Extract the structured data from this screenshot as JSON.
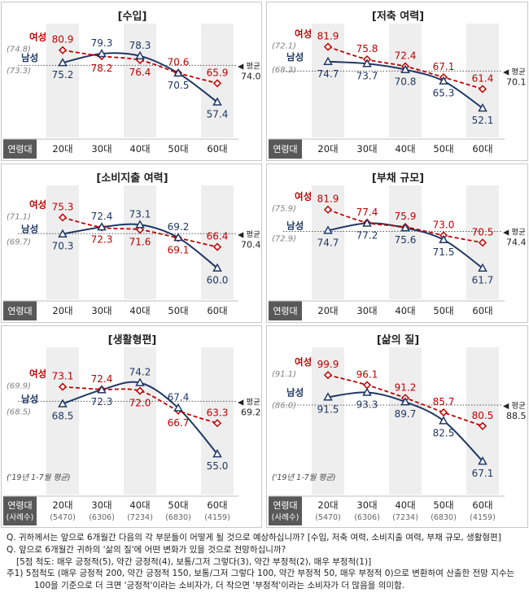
{
  "labels": {
    "female": "여성",
    "male": "남성",
    "average": "◀ 평균",
    "row_header": "연령대",
    "row_header_sub": "(사례수)",
    "period_note": "('19년 1-7월 평균)"
  },
  "colors": {
    "female": "#c00000",
    "male": "#1f3864",
    "col_band": "#eeeeee",
    "header_bg": "#595959"
  },
  "chart_data": [
    {
      "type": "line",
      "title": "[수입]",
      "categories": [
        "20대",
        "30대",
        "40대",
        "50대",
        "60대"
      ],
      "series": [
        {
          "name": "여성",
          "values": [
            80.9,
            78.2,
            76.4,
            70.6,
            65.9
          ],
          "prior_avg": "(74.8)"
        },
        {
          "name": "남성",
          "values": [
            75.2,
            79.3,
            78.3,
            70.5,
            57.4
          ],
          "prior_avg": "(73.3)"
        }
      ],
      "average": 74.0,
      "average_label": "74.0",
      "ylim": [
        48,
        90
      ]
    },
    {
      "type": "line",
      "title": "[저축 여력]",
      "categories": [
        "20대",
        "30대",
        "40대",
        "50대",
        "60대"
      ],
      "series": [
        {
          "name": "여성",
          "values": [
            81.9,
            75.8,
            72.4,
            67.1,
            61.4
          ],
          "prior_avg": "(72.1)"
        },
        {
          "name": "남성",
          "values": [
            74.7,
            73.7,
            70.8,
            65.3,
            52.1
          ],
          "prior_avg": "(68.3)"
        }
      ],
      "average": 70.1,
      "average_label": "70.1",
      "ylim": [
        45,
        90
      ]
    },
    {
      "type": "line",
      "title": "[소비지출 여력]",
      "categories": [
        "20대",
        "30대",
        "40대",
        "50대",
        "60대"
      ],
      "series": [
        {
          "name": "여성",
          "values": [
            75.3,
            72.3,
            71.6,
            69.1,
            66.4
          ],
          "prior_avg": "(71.1)"
        },
        {
          "name": "남성",
          "values": [
            70.3,
            72.4,
            73.1,
            69.2,
            60.0
          ],
          "prior_avg": "(69.7)"
        }
      ],
      "average": 70.4,
      "average_label": "70.4",
      "ylim": [
        55,
        83
      ]
    },
    {
      "type": "line",
      "title": "[부채 규모]",
      "categories": [
        "20대",
        "30대",
        "40대",
        "50대",
        "60대"
      ],
      "series": [
        {
          "name": "여성",
          "values": [
            81.9,
            77.4,
            75.9,
            73.0,
            70.5
          ],
          "prior_avg": "(75.9)"
        },
        {
          "name": "남성",
          "values": [
            74.7,
            77.2,
            75.6,
            71.5,
            61.7
          ],
          "prior_avg": "(72.9)"
        }
      ],
      "average": 74.4,
      "average_label": "74.4",
      "ylim": [
        56,
        88
      ]
    },
    {
      "type": "line",
      "title": "[생활형편]",
      "categories": [
        "20대",
        "30대",
        "40대",
        "50대",
        "60대"
      ],
      "counts": [
        "(5470)",
        "(6306)",
        "(7234)",
        "(6830)",
        "(4159)"
      ],
      "series": [
        {
          "name": "여성",
          "values": [
            73.1,
            72.4,
            72.0,
            66.7,
            63.3
          ],
          "prior_avg": "(69.9)"
        },
        {
          "name": "남성",
          "values": [
            68.5,
            72.3,
            74.2,
            67.4,
            55.0
          ],
          "prior_avg": "(68.5)"
        }
      ],
      "average": 69.2,
      "average_label": "69.2",
      "ylim": [
        48,
        82
      ]
    },
    {
      "type": "line",
      "title": "[삶의 질]",
      "categories": [
        "20대",
        "30대",
        "40대",
        "50대",
        "60대"
      ],
      "counts": [
        "(5470)",
        "(6306)",
        "(7234)",
        "(6830)",
        "(4159)"
      ],
      "series": [
        {
          "name": "여성",
          "values": [
            99.9,
            96.1,
            91.2,
            85.7,
            80.5
          ],
          "prior_avg": "(91.1)"
        },
        {
          "name": "남성",
          "values": [
            91.5,
            93.3,
            89.7,
            82.5,
            67.1
          ],
          "prior_avg": "(86.0)"
        }
      ],
      "average": 88.5,
      "average_label": "88.5",
      "ylim": [
        60,
        108
      ]
    }
  ],
  "notes": [
    "Q. 귀하께서는 앞으로 6개월간 다음의 각 부문들이 어떻게 될 것으로 예상하십니까? [수입, 저축 여력, 소비지출 여력, 부채 규모, 생활형편]",
    "Q. 앞으로 6개월간 귀하의 '삶의 질'에 어떤 변화가 있을 것으로 전망하십니까?",
    "[5점 척도: 매우 긍정적(5), 약간 긍정적(4), 보통/그저 그렇다(3), 약간 부정적(2), 매우 부정적(1)]",
    "주1) 5점척도 (매우 긍정적 200, 약간 긍정적 150, 보통/그저 그렇다 100, 약간 부정적 50, 매우 부정적 0)으로 변환하여 산출한 전망 지수는",
    "100을 기준으로 더 크면 '긍정적'이라는 소비자가, 더 작으면 '부정적'이라는 소비자가 더 많음을 의미함."
  ]
}
